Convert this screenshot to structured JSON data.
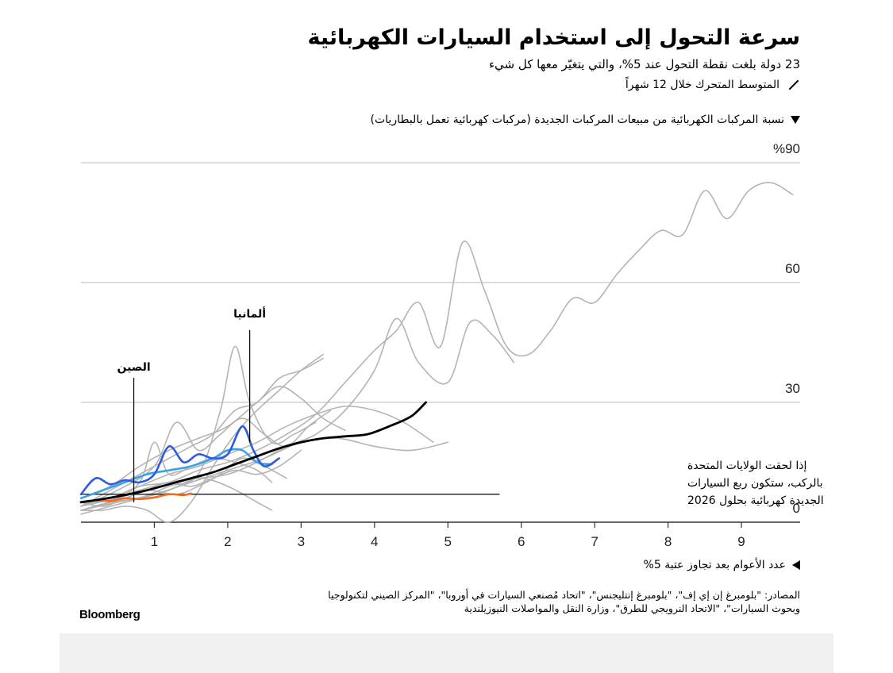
{
  "header": {
    "title": "سرعة التحول إلى استخدام السيارات الكهربائية",
    "subtitle": "23 دولة بلغت نقطة التحول عند 5%، والتي يتغيّر معها كل شيء",
    "legend_line": "المتوسط المتحرك خلال 12 شهراً",
    "legend_metric": "نسبة المركبات الكهربائية من مبيعات المركبات الجديدة (مركبات كهربائية تعمل بالبطاريات)"
  },
  "footer": {
    "xaxis_note": "عدد الأعوام بعد تجاوز عتبة 5%",
    "sources_line1": "المصادر: \"بلومبرغ إن إي إف\"، \"بلومبرغ إنتليجنس\"، \"اتحاد مُصنعي السيارات في أوروبا\"، \"المركز الصيني لتكنولوجيا",
    "sources_line2": "وبحوث السيارات\"، \"الاتحاد النرويجي للطرق\"، وزارة النقل والمواصلات النيوزيلندية",
    "brand": "Bloomberg"
  },
  "colors": {
    "grid": "#c8c8c8",
    "other_countries": "#b4b4b4",
    "average": "#000000",
    "germany": "#2f5be0",
    "secondary_blue": "#3aa3e8",
    "china": "#f26b22",
    "usa_projection": "#000000"
  },
  "chart_data": {
    "type": "line",
    "ylabel": "نسبة المركبات الكهربائية من مبيعات المركبات الجديدة (مركبات كهربائية تعمل بالبطاريات)",
    "xlabel": "عدد الأعوام بعد تجاوز عتبة 5%",
    "xlim": [
      0,
      9.8
    ],
    "ylim": [
      0,
      90
    ],
    "x_ticks": [
      1,
      2,
      3,
      4,
      5,
      6,
      7,
      8,
      9
    ],
    "x_tick_labels": [
      "1",
      "2",
      "3",
      "4",
      "5",
      "6",
      "7",
      "8",
      "9"
    ],
    "y_ticks": [
      0,
      30,
      60,
      90
    ],
    "y_tick_labels": [
      "0",
      "30",
      "60",
      "%90"
    ],
    "gridlines": true,
    "annotations": [
      {
        "label": "الصين",
        "x": 0.72,
        "y": 5
      },
      {
        "label": "ألمانيا",
        "x": 2.3,
        "y": 20
      },
      {
        "label": "إذا لحقت الولايات المتحدة",
        "line2": "بالركب، ستكون ربع السيارات",
        "line3": "الجديدة كهربائية بحلول 2026",
        "x": 5.7,
        "y": 7
      }
    ],
    "series": [
      {
        "name": "",
        "role": "other",
        "points": [
          [
            0,
            5
          ],
          [
            0.4,
            6
          ],
          [
            0.8,
            9
          ],
          [
            1.2,
            10
          ],
          [
            1.6,
            13
          ],
          [
            2.0,
            15
          ],
          [
            2.4,
            18
          ],
          [
            2.8,
            22
          ],
          [
            3.2,
            27
          ],
          [
            3.6,
            35
          ],
          [
            4.0,
            43
          ],
          [
            4.3,
            48
          ],
          [
            4.6,
            55
          ],
          [
            4.9,
            44
          ],
          [
            5.2,
            70
          ],
          [
            5.5,
            58
          ],
          [
            5.8,
            44
          ],
          [
            6.1,
            42
          ],
          [
            6.4,
            48
          ],
          [
            6.7,
            56
          ],
          [
            7.0,
            55
          ],
          [
            7.3,
            62
          ],
          [
            7.6,
            68
          ],
          [
            7.9,
            73
          ],
          [
            8.2,
            72
          ],
          [
            8.5,
            83
          ],
          [
            8.8,
            76
          ],
          [
            9.1,
            83
          ],
          [
            9.4,
            85
          ],
          [
            9.7,
            82
          ]
        ]
      },
      {
        "name": "",
        "role": "other",
        "points": [
          [
            0,
            4
          ],
          [
            0.4,
            6
          ],
          [
            0.8,
            8
          ],
          [
            1.2,
            10
          ],
          [
            1.6,
            11
          ],
          [
            2.0,
            12
          ],
          [
            2.4,
            15
          ],
          [
            2.8,
            19
          ],
          [
            3.2,
            22
          ],
          [
            3.6,
            28
          ],
          [
            4.0,
            38
          ],
          [
            4.3,
            51
          ],
          [
            4.6,
            40
          ],
          [
            5.0,
            35
          ],
          [
            5.3,
            50
          ],
          [
            5.6,
            47
          ],
          [
            5.9,
            40
          ]
        ]
      },
      {
        "name": "",
        "role": "other",
        "points": [
          [
            0,
            3
          ],
          [
            0.5,
            5
          ],
          [
            1.0,
            7
          ],
          [
            1.5,
            10
          ],
          [
            2.0,
            13
          ],
          [
            2.5,
            16
          ],
          [
            3.0,
            20
          ],
          [
            3.5,
            21
          ],
          [
            4.0,
            19
          ],
          [
            4.5,
            18
          ],
          [
            5.0,
            20
          ]
        ]
      },
      {
        "name": "",
        "role": "other",
        "points": [
          [
            0,
            6
          ],
          [
            0.4,
            9
          ],
          [
            0.8,
            14
          ],
          [
            1.2,
            18
          ],
          [
            1.6,
            21
          ],
          [
            2.0,
            24
          ],
          [
            2.4,
            30
          ],
          [
            2.7,
            34
          ],
          [
            3.0,
            31
          ],
          [
            3.3,
            26
          ],
          [
            3.6,
            23
          ]
        ]
      },
      {
        "name": "",
        "role": "other",
        "points": [
          [
            0,
            4
          ],
          [
            0.3,
            7
          ],
          [
            0.6,
            10
          ],
          [
            0.9,
            13
          ],
          [
            1.2,
            16
          ],
          [
            1.5,
            19
          ],
          [
            1.8,
            22
          ],
          [
            2.1,
            28
          ],
          [
            2.4,
            30
          ],
          [
            2.7,
            36
          ],
          [
            3.0,
            38
          ],
          [
            3.3,
            41
          ]
        ]
      },
      {
        "name": "",
        "role": "other",
        "points": [
          [
            0,
            5
          ],
          [
            0.4,
            6
          ],
          [
            0.8,
            9
          ],
          [
            1.2,
            12
          ],
          [
            1.6,
            14
          ],
          [
            2.0,
            17
          ],
          [
            2.4,
            20
          ],
          [
            2.8,
            24
          ],
          [
            3.2,
            27
          ],
          [
            3.6,
            29
          ],
          [
            4.0,
            28
          ],
          [
            4.4,
            25
          ],
          [
            4.8,
            20
          ]
        ]
      },
      {
        "name": "",
        "role": "other",
        "points": [
          [
            0,
            2
          ],
          [
            0.4,
            4
          ],
          [
            0.8,
            6
          ],
          [
            1.2,
            9
          ],
          [
            1.6,
            12
          ],
          [
            1.9,
            28
          ],
          [
            2.1,
            44
          ],
          [
            2.3,
            30
          ],
          [
            2.6,
            20
          ],
          [
            2.9,
            22
          ],
          [
            3.2,
            25
          ]
        ]
      },
      {
        "name": "",
        "role": "other",
        "points": [
          [
            0,
            3
          ],
          [
            0.4,
            5
          ],
          [
            0.8,
            10
          ],
          [
            1.0,
            20
          ],
          [
            1.2,
            12
          ],
          [
            1.5,
            14
          ],
          [
            1.8,
            16
          ],
          [
            2.1,
            15
          ],
          [
            2.4,
            13
          ],
          [
            2.6,
            10
          ]
        ]
      },
      {
        "name": "",
        "role": "other",
        "points": [
          [
            0,
            4
          ],
          [
            0.5,
            6
          ],
          [
            0.9,
            8
          ],
          [
            1.3,
            7
          ],
          [
            1.6,
            9
          ],
          [
            1.9,
            12
          ],
          [
            2.2,
            16
          ],
          [
            2.5,
            14
          ],
          [
            2.8,
            11
          ]
        ]
      },
      {
        "name": "",
        "role": "other",
        "points": [
          [
            0,
            5
          ],
          [
            0.3,
            4
          ],
          [
            0.6,
            6
          ],
          [
            0.9,
            8
          ],
          [
            1.2,
            10
          ],
          [
            1.5,
            9
          ],
          [
            1.8,
            11
          ],
          [
            2.1,
            13
          ],
          [
            2.4,
            12
          ],
          [
            2.7,
            14
          ],
          [
            3.0,
            18
          ]
        ]
      },
      {
        "name": "",
        "role": "other",
        "points": [
          [
            0,
            3
          ],
          [
            0.3,
            3
          ],
          [
            0.6,
            4
          ],
          [
            0.9,
            3
          ],
          [
            1.2,
            0
          ],
          [
            1.5,
            5
          ],
          [
            1.8,
            14
          ],
          [
            2.1,
            22
          ],
          [
            2.4,
            28
          ],
          [
            2.7,
            33
          ],
          [
            3.0,
            38
          ],
          [
            3.3,
            42
          ]
        ]
      },
      {
        "name": "",
        "role": "other",
        "points": [
          [
            0,
            4
          ],
          [
            0.5,
            8
          ],
          [
            1.0,
            14
          ],
          [
            1.3,
            25
          ],
          [
            1.6,
            18
          ],
          [
            1.9,
            22
          ],
          [
            2.2,
            26
          ],
          [
            2.5,
            22
          ],
          [
            2.8,
            19
          ],
          [
            3.1,
            24
          ],
          [
            3.4,
            28
          ]
        ]
      },
      {
        "name": "",
        "role": "other",
        "points": [
          [
            0,
            3
          ],
          [
            0.4,
            5
          ],
          [
            0.8,
            6
          ],
          [
            1.2,
            8
          ],
          [
            1.6,
            11
          ],
          [
            2.0,
            9
          ],
          [
            2.4,
            5
          ],
          [
            2.6,
            3
          ]
        ]
      },
      {
        "name": "",
        "role": "average",
        "points": [
          [
            0,
            5
          ],
          [
            0.3,
            5.8
          ],
          [
            0.6,
            6.8
          ],
          [
            0.9,
            8.0
          ],
          [
            1.2,
            9.5
          ],
          [
            1.5,
            11
          ],
          [
            1.8,
            12.5
          ],
          [
            2.1,
            14.5
          ],
          [
            2.4,
            16.5
          ],
          [
            2.7,
            18.5
          ],
          [
            3.0,
            20
          ],
          [
            3.3,
            21
          ],
          [
            3.6,
            21.5
          ],
          [
            3.9,
            22
          ],
          [
            4.2,
            24
          ],
          [
            4.5,
            26.5
          ],
          [
            4.7,
            30
          ]
        ]
      },
      {
        "name": "",
        "role": "germany",
        "points": [
          [
            0,
            7
          ],
          [
            0.2,
            11
          ],
          [
            0.4,
            9.5
          ],
          [
            0.6,
            10.5
          ],
          [
            0.8,
            10
          ],
          [
            1.0,
            12
          ],
          [
            1.2,
            19
          ],
          [
            1.4,
            15
          ],
          [
            1.6,
            17
          ],
          [
            1.8,
            16
          ],
          [
            2.0,
            17
          ],
          [
            2.2,
            24
          ],
          [
            2.35,
            18
          ],
          [
            2.5,
            14
          ],
          [
            2.7,
            16
          ]
        ]
      },
      {
        "name": "",
        "role": "secondary",
        "points": [
          [
            0,
            6
          ],
          [
            0.3,
            8
          ],
          [
            0.6,
            10
          ],
          [
            0.9,
            12
          ],
          [
            1.2,
            13
          ],
          [
            1.5,
            14
          ],
          [
            1.8,
            16
          ],
          [
            2.0,
            18
          ],
          [
            2.2,
            18
          ],
          [
            2.4,
            15
          ],
          [
            2.6,
            14.5
          ]
        ]
      },
      {
        "name": "",
        "role": "china",
        "points": [
          [
            0,
            5
          ],
          [
            0.2,
            5.5
          ],
          [
            0.4,
            5.3
          ],
          [
            0.6,
            6
          ],
          [
            0.8,
            5.8
          ],
          [
            1.0,
            6.2
          ],
          [
            1.2,
            7
          ],
          [
            1.4,
            6.8
          ],
          [
            1.5,
            7.2
          ]
        ]
      },
      {
        "name": "",
        "role": "projection",
        "points": [
          [
            0,
            7
          ],
          [
            5.7,
            7
          ]
        ]
      }
    ]
  }
}
